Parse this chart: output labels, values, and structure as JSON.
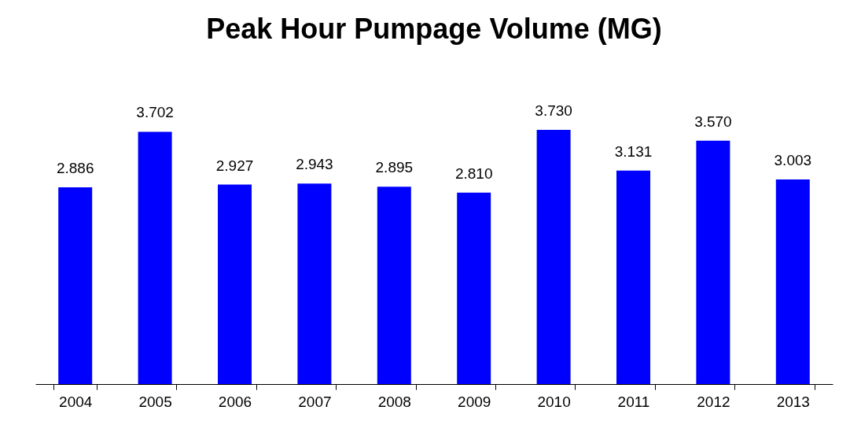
{
  "chart_data": {
    "type": "bar",
    "title": "Peak Hour Pumpage Volume (MG)",
    "categories": [
      "2004",
      "2005",
      "2006",
      "2007",
      "2008",
      "2009",
      "2010",
      "2011",
      "2012",
      "2013"
    ],
    "values": [
      2.886,
      3.702,
      2.927,
      2.943,
      2.895,
      2.81,
      3.73,
      3.131,
      3.57,
      3.003
    ],
    "value_labels": [
      "2.886",
      "3.702",
      "2.927",
      "2.943",
      "2.895",
      "2.810",
      "3.730",
      "3.131",
      "3.570",
      "3.003"
    ],
    "color": "#0000ff"
  }
}
